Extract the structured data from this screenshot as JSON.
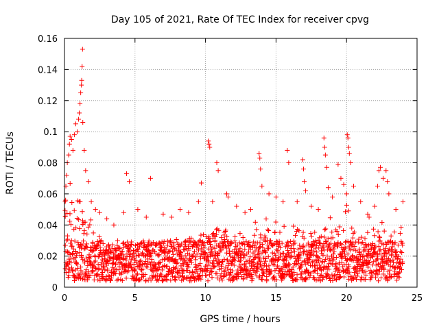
{
  "chart_data": {
    "type": "scatter",
    "title": "Day 105 of 2021, Rate Of TEC Index for receiver cpvg",
    "xlabel": "GPS time / hours",
    "ylabel": "ROTI / TECUs",
    "xlim": [
      0,
      25
    ],
    "ylim": [
      0,
      0.16
    ],
    "xticks": [
      0,
      5,
      10,
      15,
      20,
      25
    ],
    "xtick_labels": [
      "0",
      "5",
      "10",
      "15",
      "20",
      "25"
    ],
    "yticks": [
      0,
      0.02,
      0.04,
      0.06,
      0.08,
      0.1,
      0.12,
      0.14,
      0.16
    ],
    "ytick_labels": [
      "0",
      "0.02",
      "0.04",
      "0.06",
      "0.08",
      "0.1",
      "0.12",
      "0.14",
      "0.16"
    ],
    "grid": true,
    "marker": "+",
    "series": [
      {
        "name": "ROTI",
        "color": "#ff0000",
        "points": [
          [
            0.05,
            0.055
          ],
          [
            0.1,
            0.065
          ],
          [
            0.15,
            0.072
          ],
          [
            0.2,
            0.08
          ],
          [
            0.3,
            0.085
          ],
          [
            0.35,
            0.092
          ],
          [
            0.4,
            0.097
          ],
          [
            0.5,
            0.095
          ],
          [
            0.6,
            0.088
          ],
          [
            0.7,
            0.098
          ],
          [
            0.8,
            0.105
          ],
          [
            0.9,
            0.1
          ],
          [
            1.0,
            0.108
          ],
          [
            1.05,
            0.112
          ],
          [
            1.1,
            0.118
          ],
          [
            1.15,
            0.125
          ],
          [
            1.2,
            0.13
          ],
          [
            1.22,
            0.133
          ],
          [
            1.25,
            0.142
          ],
          [
            1.28,
            0.153
          ],
          [
            1.3,
            0.106
          ],
          [
            1.4,
            0.088
          ],
          [
            1.5,
            0.075
          ],
          [
            1.7,
            0.068
          ],
          [
            1.9,
            0.055
          ],
          [
            2.2,
            0.05
          ],
          [
            2.5,
            0.048
          ],
          [
            3.0,
            0.044
          ],
          [
            3.5,
            0.04
          ],
          [
            4.2,
            0.048
          ],
          [
            4.4,
            0.073
          ],
          [
            4.6,
            0.068
          ],
          [
            5.2,
            0.05
          ],
          [
            5.8,
            0.045
          ],
          [
            6.1,
            0.07
          ],
          [
            7.0,
            0.047
          ],
          [
            7.6,
            0.045
          ],
          [
            8.2,
            0.05
          ],
          [
            8.8,
            0.048
          ],
          [
            9.5,
            0.055
          ],
          [
            9.7,
            0.067
          ],
          [
            10.2,
            0.094
          ],
          [
            10.25,
            0.092
          ],
          [
            10.3,
            0.09
          ],
          [
            10.5,
            0.055
          ],
          [
            10.8,
            0.08
          ],
          [
            10.9,
            0.075
          ],
          [
            11.5,
            0.06
          ],
          [
            11.6,
            0.058
          ],
          [
            12.2,
            0.052
          ],
          [
            12.8,
            0.048
          ],
          [
            13.2,
            0.05
          ],
          [
            13.8,
            0.086
          ],
          [
            13.85,
            0.083
          ],
          [
            13.9,
            0.076
          ],
          [
            14.0,
            0.065
          ],
          [
            14.5,
            0.06
          ],
          [
            15.0,
            0.058
          ],
          [
            15.5,
            0.055
          ],
          [
            15.8,
            0.088
          ],
          [
            15.9,
            0.08
          ],
          [
            16.5,
            0.055
          ],
          [
            16.9,
            0.082
          ],
          [
            16.95,
            0.076
          ],
          [
            17.0,
            0.068
          ],
          [
            17.1,
            0.062
          ],
          [
            17.5,
            0.052
          ],
          [
            18.0,
            0.05
          ],
          [
            18.4,
            0.096
          ],
          [
            18.45,
            0.09
          ],
          [
            18.5,
            0.085
          ],
          [
            18.6,
            0.077
          ],
          [
            18.7,
            0.064
          ],
          [
            19.0,
            0.058
          ],
          [
            19.4,
            0.079
          ],
          [
            19.6,
            0.07
          ],
          [
            19.8,
            0.066
          ],
          [
            20.0,
            0.06
          ],
          [
            20.05,
            0.098
          ],
          [
            20.1,
            0.096
          ],
          [
            20.15,
            0.09
          ],
          [
            20.2,
            0.086
          ],
          [
            20.3,
            0.08
          ],
          [
            20.5,
            0.065
          ],
          [
            21.0,
            0.055
          ],
          [
            21.5,
            0.047
          ],
          [
            21.6,
            0.045
          ],
          [
            22.0,
            0.052
          ],
          [
            22.2,
            0.065
          ],
          [
            22.3,
            0.075
          ],
          [
            22.4,
            0.077
          ],
          [
            22.6,
            0.07
          ],
          [
            22.8,
            0.075
          ],
          [
            22.9,
            0.068
          ],
          [
            23.0,
            0.06
          ],
          [
            23.5,
            0.05
          ],
          [
            24.0,
            0.055
          ]
        ],
        "baseline_band": {
          "x_start": 0.05,
          "x_end": 24.0,
          "step": 0.05,
          "low": 0.004,
          "typical_high": 0.03,
          "dense_envelope": [
            [
              0,
              0.065
            ],
            [
              1,
              0.07
            ],
            [
              1.5,
              0.05
            ],
            [
              2.5,
              0.035
            ],
            [
              3,
              0.025
            ],
            [
              5,
              0.028
            ],
            [
              7,
              0.03
            ],
            [
              9,
              0.032
            ],
            [
              10,
              0.035
            ],
            [
              11,
              0.04
            ],
            [
              12,
              0.035
            ],
            [
              13,
              0.038
            ],
            [
              14,
              0.045
            ],
            [
              15,
              0.042
            ],
            [
              16,
              0.04
            ],
            [
              17,
              0.038
            ],
            [
              18,
              0.035
            ],
            [
              18.5,
              0.05
            ],
            [
              19,
              0.05
            ],
            [
              20,
              0.055
            ],
            [
              21,
              0.035
            ],
            [
              22,
              0.04
            ],
            [
              23,
              0.045
            ],
            [
              24,
              0.04
            ]
          ]
        }
      }
    ]
  }
}
